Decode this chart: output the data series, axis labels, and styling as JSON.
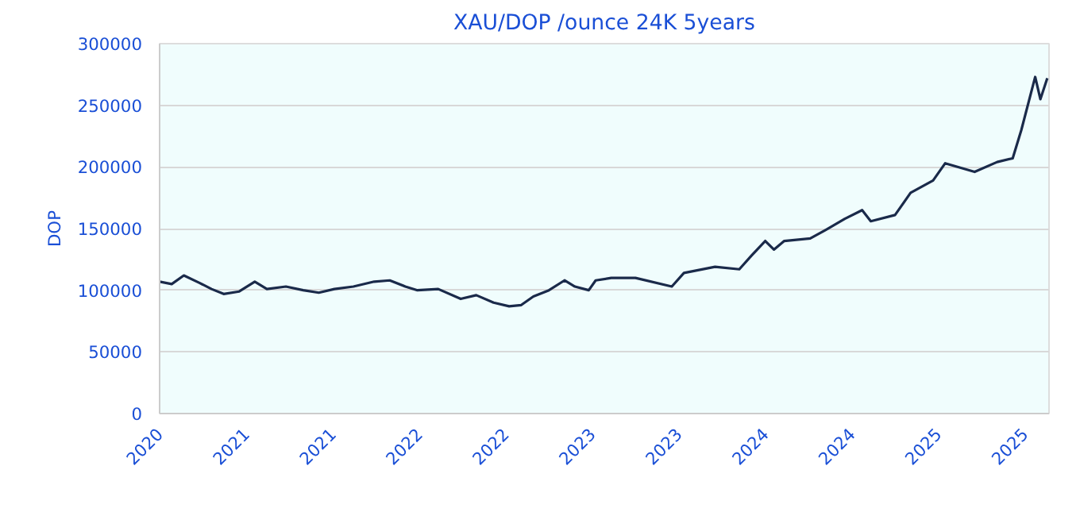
{
  "chart_data": {
    "type": "line",
    "title": "XAU/DOP /ounce 24K 5years",
    "ylabel": "DOP",
    "xlim": [
      2020.3,
      2025.44
    ],
    "ylim": [
      0,
      300000
    ],
    "xticks": [
      {
        "value": 2020.3,
        "label": "2020"
      },
      {
        "value": 2020.8,
        "label": "2021"
      },
      {
        "value": 2021.3,
        "label": "2021"
      },
      {
        "value": 2021.8,
        "label": "2022"
      },
      {
        "value": 2022.3,
        "label": "2022"
      },
      {
        "value": 2022.8,
        "label": "2023"
      },
      {
        "value": 2023.3,
        "label": "2023"
      },
      {
        "value": 2023.8,
        "label": "2024"
      },
      {
        "value": 2024.3,
        "label": "2024"
      },
      {
        "value": 2024.8,
        "label": "2025"
      },
      {
        "value": 2025.3,
        "label": "2025"
      }
    ],
    "yticks": [
      0,
      50000,
      100000,
      150000,
      200000,
      250000,
      300000
    ],
    "grid": "y",
    "series": [
      {
        "color": "#1a2a4a",
        "x": [
          2020.3,
          2020.37,
          2020.44,
          2020.53,
          2020.6,
          2020.67,
          2020.76,
          2020.85,
          2020.92,
          2021.03,
          2021.13,
          2021.22,
          2021.31,
          2021.42,
          2021.54,
          2021.63,
          2021.72,
          2021.79,
          2021.91,
          2022.04,
          2022.13,
          2022.23,
          2022.32,
          2022.39,
          2022.46,
          2022.55,
          2022.64,
          2022.7,
          2022.78,
          2022.82,
          2022.91,
          2023.05,
          2023.26,
          2023.33,
          2023.51,
          2023.65,
          2023.72,
          2023.8,
          2023.85,
          2023.91,
          2024.06,
          2024.15,
          2024.26,
          2024.36,
          2024.41,
          2024.55,
          2024.64,
          2024.77,
          2024.84,
          2025.01,
          2025.14,
          2025.23,
          2025.28,
          2025.36,
          2025.39,
          2025.43
        ],
        "values": [
          107000,
          105000,
          112000,
          106000,
          101000,
          97000,
          99000,
          107000,
          101000,
          103000,
          100000,
          98000,
          101000,
          103000,
          107000,
          108000,
          103000,
          100000,
          101000,
          93000,
          96000,
          90000,
          87000,
          88000,
          95000,
          100000,
          108000,
          103000,
          100000,
          108000,
          110000,
          110000,
          103000,
          114000,
          119000,
          117000,
          128000,
          140000,
          133000,
          140000,
          142000,
          149000,
          158000,
          165000,
          156000,
          161000,
          179000,
          189000,
          203000,
          196000,
          204000,
          207000,
          230000,
          273000,
          255000,
          272000
        ]
      }
    ]
  }
}
